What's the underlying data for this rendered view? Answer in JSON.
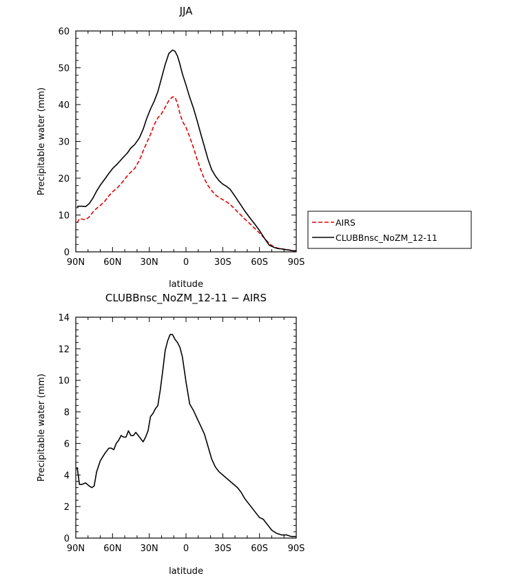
{
  "chart_data": [
    {
      "type": "line",
      "title": "JJA",
      "xlabel": "latitude",
      "ylabel": "Precipitable water (mm)",
      "xlim": [
        -90,
        90
      ],
      "ylim": [
        0,
        60
      ],
      "x_ticks": [
        -90,
        -60,
        -30,
        0,
        30,
        60,
        90
      ],
      "x_tick_labels": [
        "90N",
        "60N",
        "30N",
        "0",
        "30S",
        "60S",
        "90S"
      ],
      "y_ticks": [
        0,
        10,
        20,
        30,
        40,
        50,
        60
      ],
      "y_tick_labels": [
        "0",
        "10",
        "20",
        "30",
        "40",
        "50",
        "60"
      ],
      "legend_position": "outside-right",
      "series": [
        {
          "name": "AIRS",
          "color": "#e00000",
          "dash": "dashed",
          "x": [
            -89,
            -87,
            -85,
            -82,
            -79,
            -76,
            -73,
            -70,
            -66,
            -63,
            -60,
            -56,
            -52,
            -48,
            -45,
            -42,
            -38,
            -35,
            -32,
            -29,
            -26,
            -23,
            -20,
            -17,
            -14,
            -11,
            -9,
            -7,
            -5,
            -3,
            0,
            3,
            6,
            9,
            12,
            15,
            18,
            21,
            24,
            27,
            30,
            33,
            36,
            39,
            42,
            45,
            48,
            52,
            56,
            60,
            64,
            68,
            72,
            75,
            78,
            81,
            84,
            87,
            90
          ],
          "values": [
            7.9,
            9.0,
            8.9,
            8.7,
            9.5,
            10.8,
            11.8,
            12.6,
            13.9,
            15.2,
            16.3,
            17.4,
            18.9,
            20.6,
            21.7,
            22.6,
            24.9,
            27.4,
            29.7,
            31.9,
            34.5,
            36.4,
            37.5,
            39.3,
            41.1,
            42.1,
            42.0,
            40.3,
            37.6,
            35.5,
            33.8,
            31.2,
            28.4,
            25.2,
            22.3,
            19.8,
            18.0,
            16.6,
            15.5,
            14.7,
            14.2,
            13.6,
            12.9,
            11.9,
            10.9,
            9.9,
            8.9,
            7.7,
            6.4,
            5.1,
            3.7,
            2.2,
            1.3,
            1.0,
            0.8,
            0.7,
            0.5,
            0.3,
            0.2
          ]
        },
        {
          "name": "CLUBBnsc_NoZM_12-11",
          "color": "#000000",
          "dash": "solid",
          "x": [
            -89,
            -87,
            -85,
            -82,
            -79,
            -76,
            -73,
            -70,
            -66,
            -63,
            -60,
            -56,
            -52,
            -48,
            -45,
            -42,
            -38,
            -35,
            -32,
            -29,
            -26,
            -23,
            -20,
            -17,
            -14,
            -11,
            -9,
            -7,
            -5,
            -3,
            0,
            3,
            6,
            9,
            12,
            15,
            18,
            21,
            24,
            27,
            30,
            33,
            36,
            39,
            42,
            45,
            48,
            52,
            56,
            60,
            64,
            68,
            72,
            75,
            78,
            81,
            84,
            87,
            90
          ],
          "values": [
            12.3,
            12.4,
            12.4,
            12.3,
            13.1,
            14.6,
            16.5,
            18.1,
            19.9,
            21.3,
            22.6,
            23.9,
            25.4,
            26.8,
            28.2,
            29.1,
            31.0,
            33.3,
            36.3,
            38.8,
            40.9,
            43.5,
            47.2,
            50.9,
            53.9,
            54.8,
            54.5,
            53.2,
            51.0,
            48.4,
            45.3,
            42.0,
            39.1,
            35.7,
            32.1,
            28.6,
            25.1,
            22.3,
            20.6,
            19.3,
            18.4,
            17.8,
            17.0,
            15.6,
            14.1,
            12.6,
            11.1,
            9.3,
            7.6,
            5.8,
            3.7,
            1.8,
            1.2,
            0.9,
            0.8,
            0.6,
            0.5,
            0.3,
            0.3
          ]
        }
      ]
    },
    {
      "type": "line",
      "title": "CLUBBnsc_NoZM_12-11 − AIRS",
      "xlabel": "latitude",
      "ylabel": "Precipitable water (mm)",
      "xlim": [
        -90,
        90
      ],
      "ylim": [
        0,
        14
      ],
      "x_ticks": [
        -90,
        -60,
        -30,
        0,
        30,
        60,
        90
      ],
      "x_tick_labels": [
        "90N",
        "60N",
        "30N",
        "0",
        "30S",
        "60S",
        "90S"
      ],
      "y_ticks": [
        0,
        2,
        4,
        6,
        8,
        10,
        12,
        14
      ],
      "y_tick_labels": [
        "0",
        "2",
        "4",
        "6",
        "8",
        "10",
        "12",
        "14"
      ],
      "series": [
        {
          "color": "#000000",
          "dash": "solid",
          "x": [
            -89,
            -88,
            -87,
            -85,
            -82,
            -79,
            -77,
            -75,
            -73,
            -70,
            -66,
            -63,
            -61,
            -59,
            -57,
            -55,
            -53,
            -51,
            -49,
            -47,
            -45,
            -43,
            -41,
            -38,
            -35,
            -33,
            -31,
            -29,
            -27,
            -25,
            -23,
            -21,
            -19,
            -17,
            -15,
            -13,
            -11,
            -9,
            -7,
            -5,
            -3,
            0,
            3,
            6,
            9,
            12,
            15,
            18,
            21,
            24,
            27,
            30,
            33,
            36,
            39,
            42,
            45,
            48,
            51,
            54,
            57,
            60,
            63,
            66,
            70,
            74,
            78,
            82,
            86,
            90
          ],
          "values": [
            4.5,
            4.0,
            3.4,
            3.4,
            3.5,
            3.3,
            3.2,
            3.3,
            4.2,
            4.9,
            5.4,
            5.7,
            5.7,
            5.6,
            6.0,
            6.2,
            6.5,
            6.4,
            6.4,
            6.8,
            6.5,
            6.5,
            6.7,
            6.4,
            6.1,
            6.4,
            6.8,
            7.7,
            7.9,
            8.2,
            8.4,
            9.4,
            10.6,
            11.9,
            12.5,
            12.9,
            12.9,
            12.6,
            12.4,
            12.1,
            11.5,
            9.9,
            8.5,
            8.1,
            7.6,
            7.1,
            6.6,
            5.8,
            5.0,
            4.5,
            4.2,
            4.0,
            3.8,
            3.6,
            3.4,
            3.2,
            2.9,
            2.5,
            2.2,
            1.9,
            1.6,
            1.3,
            1.2,
            0.9,
            0.5,
            0.3,
            0.2,
            0.2,
            0.1,
            0.1
          ]
        }
      ]
    }
  ]
}
